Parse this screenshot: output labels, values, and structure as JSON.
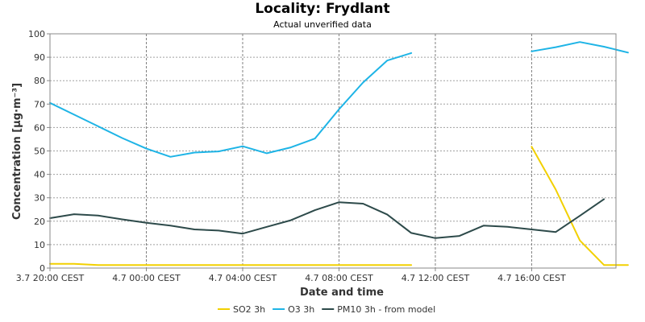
{
  "chart_data": {
    "type": "line",
    "title": "Locality: Frydlant",
    "subtitle": "Actual unverified data",
    "xlabel": "Date and time",
    "ylabel": "Concentration [µg·m⁻³]",
    "ylim": [
      0,
      100
    ],
    "yticks": [
      0,
      10,
      20,
      30,
      40,
      50,
      60,
      70,
      80,
      90,
      100
    ],
    "xlim": [
      20,
      43.5
    ],
    "xticks": [
      {
        "x": 20,
        "label": "3.7 20:00 CEST"
      },
      {
        "x": 24,
        "label": "4.7 00:00 CEST"
      },
      {
        "x": 28,
        "label": "4.7 04:00 CEST"
      },
      {
        "x": 32,
        "label": "4.7 08:00 CEST"
      },
      {
        "x": 36,
        "label": "4.7 12:00 CEST"
      },
      {
        "x": 40,
        "label": "4.7 16:00 CEST"
      }
    ],
    "grid": true,
    "legend_position": "bottom",
    "series": [
      {
        "name": "SO2 3h",
        "color": "#f2d000",
        "points": [
          [
            20,
            1.8
          ],
          [
            21,
            1.8
          ],
          [
            22,
            1.3
          ],
          [
            23,
            1.3
          ],
          [
            24,
            1.3
          ],
          [
            25,
            1.3
          ],
          [
            26,
            1.3
          ],
          [
            27,
            1.3
          ],
          [
            28,
            1.3
          ],
          [
            29,
            1.3
          ],
          [
            30,
            1.3
          ],
          [
            31,
            1.3
          ],
          [
            32,
            1.3
          ],
          [
            33,
            1.3
          ],
          [
            34,
            1.3
          ],
          [
            35,
            1.3
          ],
          null,
          [
            40,
            51.8
          ],
          [
            41,
            33.5
          ],
          [
            42,
            11.8
          ],
          [
            43,
            1.3
          ],
          [
            44,
            1.3
          ]
        ]
      },
      {
        "name": "O3 3h",
        "color": "#1eb4e6",
        "points": [
          [
            20,
            70.5
          ],
          [
            21,
            65.5
          ],
          [
            22,
            60.5
          ],
          [
            23,
            55.5
          ],
          [
            24,
            51
          ],
          [
            25,
            47.5
          ],
          [
            26,
            49.3
          ],
          [
            27,
            49.8
          ],
          [
            28,
            52
          ],
          [
            29,
            49
          ],
          [
            30,
            51.5
          ],
          [
            31,
            55.3
          ],
          [
            32,
            67.8
          ],
          [
            33,
            79.2
          ],
          [
            34,
            88.6
          ],
          [
            35,
            91.8
          ],
          null,
          [
            40,
            92.5
          ],
          [
            41,
            94.3
          ],
          [
            42,
            96.5
          ],
          [
            43,
            94.5
          ],
          [
            44,
            92
          ]
        ]
      },
      {
        "name": "PM10 3h - from model",
        "color": "#2d4a4a",
        "points": [
          [
            20,
            21.3
          ],
          [
            21,
            23
          ],
          [
            22,
            22.4
          ],
          [
            23,
            20.8
          ],
          [
            24,
            19.3
          ],
          [
            25,
            18.1
          ],
          [
            26,
            16.5
          ],
          [
            27,
            16
          ],
          [
            28,
            14.7
          ],
          [
            29,
            17.6
          ],
          [
            30,
            20.4
          ],
          [
            31,
            24.7
          ],
          [
            32,
            28.1
          ],
          [
            33,
            27.5
          ],
          [
            34,
            22.9
          ],
          [
            35,
            15
          ],
          [
            36,
            12.8
          ],
          [
            37,
            13.7
          ],
          [
            38,
            18.1
          ],
          [
            39,
            17.6
          ],
          [
            40,
            16.5
          ],
          [
            41,
            15.4
          ],
          [
            42,
            22.3
          ],
          [
            43,
            29.4
          ]
        ]
      }
    ]
  }
}
